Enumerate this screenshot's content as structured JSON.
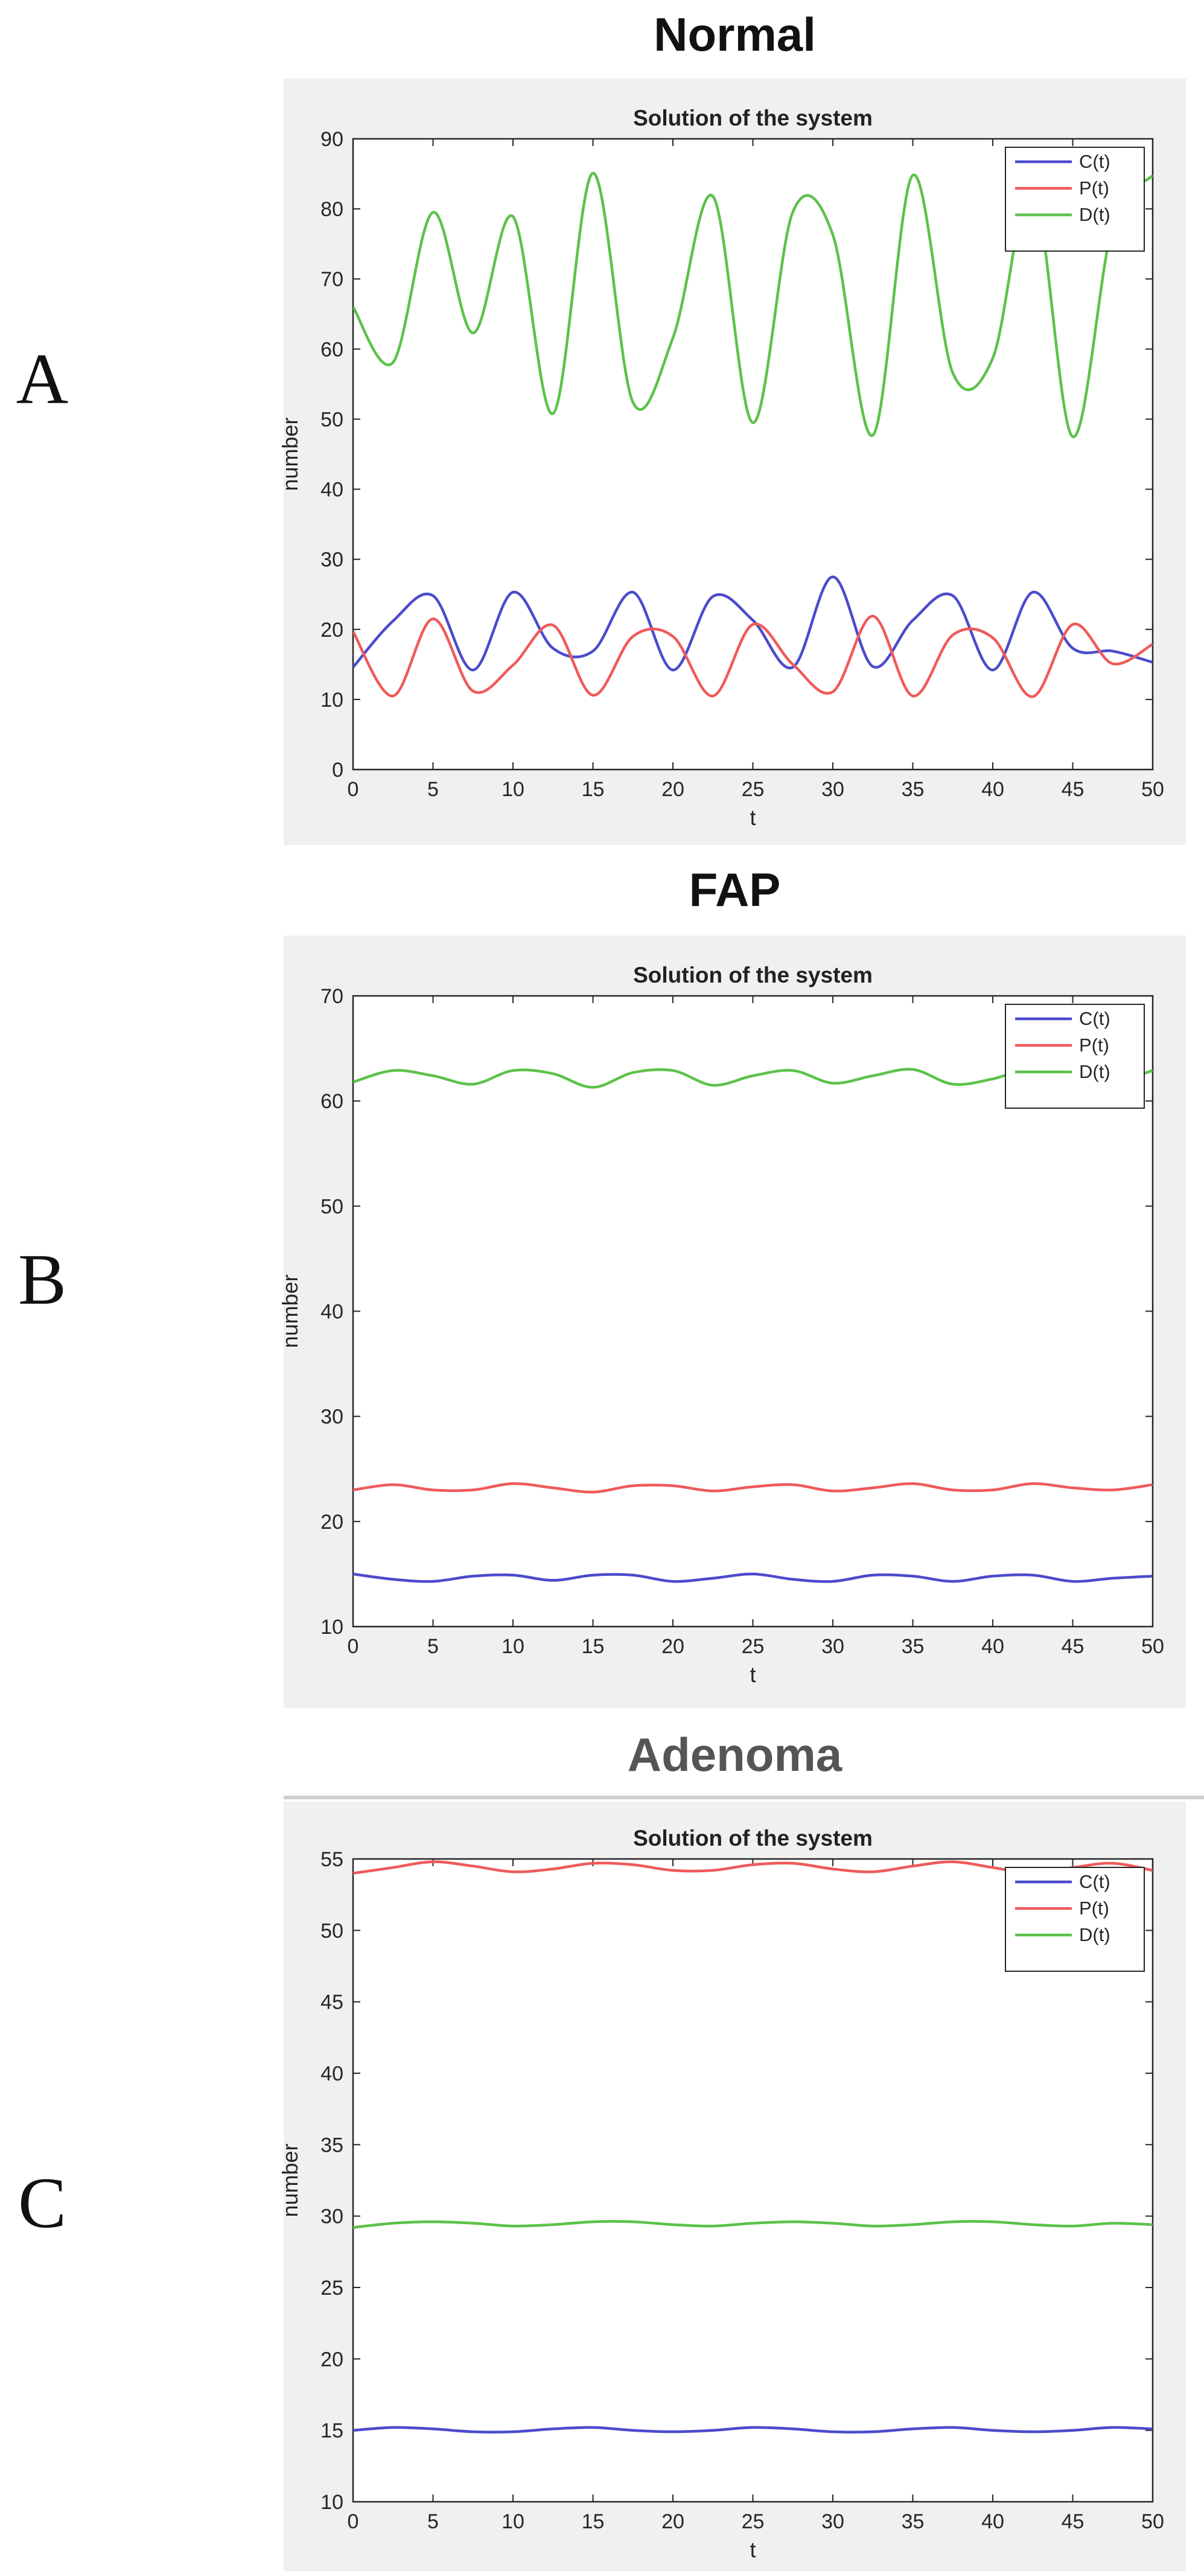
{
  "panels": [
    {
      "letter": "A",
      "heading": "Normal"
    },
    {
      "letter": "B",
      "heading": "FAP"
    },
    {
      "letter": "C",
      "heading": "Adenoma"
    }
  ],
  "colors": {
    "C": "#4b4bcc",
    "P": "#ef5a5a",
    "D": "#5cc24a"
  },
  "chart_data": [
    {
      "type": "line",
      "title": "Solution of the system",
      "xlabel": "t",
      "ylabel": "number",
      "xlim": [
        0,
        50
      ],
      "ylim": [
        0,
        90
      ],
      "xticks": [
        0,
        5,
        10,
        15,
        20,
        25,
        30,
        35,
        40,
        45,
        50
      ],
      "yticks": [
        0,
        10,
        20,
        30,
        40,
        50,
        60,
        70,
        80,
        90
      ],
      "legend": "top-right",
      "grid": false,
      "x": [
        0,
        2.5,
        5,
        7.5,
        10,
        12.5,
        15,
        17.5,
        20,
        22.5,
        25,
        27.5,
        30,
        32.5,
        35,
        37.5,
        40,
        42.5,
        45,
        47.5,
        50
      ],
      "series": [
        {
          "name": "C(t)",
          "color_key": "C",
          "values": [
            14.6,
            21.2,
            24.8,
            14.2,
            25.3,
            17.3,
            16.9,
            25.3,
            14.2,
            24.7,
            21.3,
            14.6,
            27.5,
            14.7,
            21.3,
            24.8,
            14.2,
            25.3,
            17.3,
            16.9,
            15.3
          ]
        },
        {
          "name": "P(t)",
          "color_key": "P",
          "values": [
            19.7,
            10.5,
            21.5,
            11.2,
            14.9,
            20.6,
            10.6,
            19.0,
            19.0,
            10.5,
            20.7,
            15.0,
            11.1,
            21.9,
            10.5,
            19.2,
            18.8,
            10.4,
            20.7,
            15.1,
            17.9
          ]
        },
        {
          "name": "D(t)",
          "color_key": "D",
          "values": [
            66.0,
            58.1,
            79.5,
            62.3,
            78.9,
            50.8,
            85.1,
            52.4,
            61.6,
            81.8,
            49.5,
            79.6,
            76.3,
            47.7,
            84.8,
            56.6,
            58.7,
            83.2,
            47.5,
            77.7,
            84.8
          ]
        }
      ]
    },
    {
      "type": "line",
      "title": "Solution of the system",
      "xlabel": "t",
      "ylabel": "number",
      "xlim": [
        0,
        50
      ],
      "ylim": [
        10,
        70
      ],
      "xticks": [
        0,
        5,
        10,
        15,
        20,
        25,
        30,
        35,
        40,
        45,
        50
      ],
      "yticks": [
        10,
        20,
        30,
        40,
        50,
        60,
        70
      ],
      "legend": "top-right",
      "grid": false,
      "x": [
        0,
        2.5,
        5,
        7.5,
        10,
        12.5,
        15,
        17.5,
        20,
        22.5,
        25,
        27.5,
        30,
        32.5,
        35,
        37.5,
        40,
        42.5,
        45,
        47.5,
        50
      ],
      "series": [
        {
          "name": "C(t)",
          "color_key": "C",
          "values": [
            15.0,
            14.5,
            14.3,
            14.8,
            14.9,
            14.4,
            14.9,
            14.9,
            14.3,
            14.6,
            15.0,
            14.5,
            14.3,
            14.9,
            14.8,
            14.3,
            14.8,
            14.9,
            14.3,
            14.6,
            14.8
          ]
        },
        {
          "name": "P(t)",
          "color_key": "P",
          "values": [
            23.0,
            23.5,
            23.0,
            23.0,
            23.6,
            23.2,
            22.8,
            23.4,
            23.4,
            22.9,
            23.3,
            23.5,
            22.9,
            23.2,
            23.6,
            23.0,
            23.0,
            23.6,
            23.2,
            23.0,
            23.5
          ]
        },
        {
          "name": "D(t)",
          "color_key": "D",
          "values": [
            61.8,
            62.9,
            62.4,
            61.6,
            62.9,
            62.6,
            61.3,
            62.7,
            62.9,
            61.5,
            62.4,
            62.9,
            61.7,
            62.4,
            63.0,
            61.6,
            62.1,
            63.1,
            61.9,
            61.8,
            62.9
          ]
        }
      ]
    },
    {
      "type": "line",
      "title": "Solution of the system",
      "xlabel": "t",
      "ylabel": "number",
      "xlim": [
        0,
        50
      ],
      "ylim": [
        10,
        55
      ],
      "xticks": [
        0,
        5,
        10,
        15,
        20,
        25,
        30,
        35,
        40,
        45,
        50
      ],
      "yticks": [
        10,
        15,
        20,
        25,
        30,
        35,
        40,
        45,
        50,
        55
      ],
      "legend": "top-right",
      "grid": false,
      "x": [
        0,
        2.5,
        5,
        7.5,
        10,
        12.5,
        15,
        17.5,
        20,
        22.5,
        25,
        27.5,
        30,
        32.5,
        35,
        37.5,
        40,
        42.5,
        45,
        47.5,
        50
      ],
      "series": [
        {
          "name": "C(t)",
          "color_key": "C",
          "values": [
            15.0,
            15.2,
            15.1,
            14.9,
            14.9,
            15.1,
            15.2,
            15.0,
            14.9,
            15.0,
            15.2,
            15.1,
            14.9,
            14.9,
            15.1,
            15.2,
            15.0,
            14.9,
            15.0,
            15.2,
            15.1
          ]
        },
        {
          "name": "P(t)",
          "color_key": "P",
          "values": [
            54.0,
            54.4,
            54.8,
            54.5,
            54.1,
            54.3,
            54.7,
            54.6,
            54.2,
            54.2,
            54.6,
            54.7,
            54.3,
            54.1,
            54.5,
            54.8,
            54.4,
            54.0,
            54.4,
            54.7,
            54.2
          ]
        },
        {
          "name": "D(t)",
          "color_key": "D",
          "values": [
            29.2,
            29.5,
            29.6,
            29.5,
            29.3,
            29.4,
            29.6,
            29.6,
            29.4,
            29.3,
            29.5,
            29.6,
            29.5,
            29.3,
            29.4,
            29.6,
            29.6,
            29.4,
            29.3,
            29.5,
            29.4
          ]
        }
      ]
    }
  ]
}
